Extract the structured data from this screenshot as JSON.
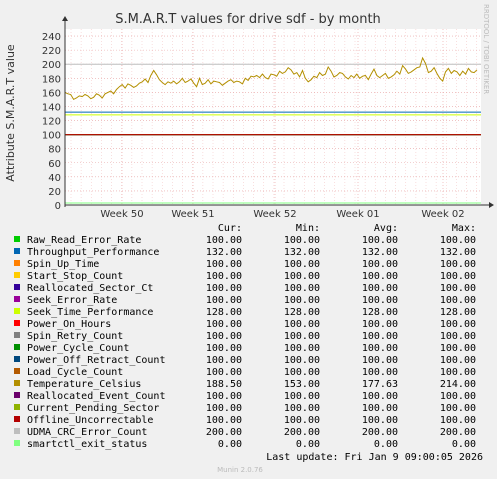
{
  "chart_data": {
    "type": "line",
    "title": "S.M.A.R.T values for drive sdf - by month",
    "ylabel": "Attribute S.M.A.R.T value",
    "side_label": "RRDTOOL / TOBI OETIKER",
    "ylim": [
      0,
      250
    ],
    "yticks": [
      0,
      20,
      40,
      60,
      80,
      100,
      120,
      140,
      160,
      180,
      200,
      220,
      240
    ],
    "xticks": [
      "Week 50",
      "Week 51",
      "Week 52",
      "Week 01",
      "Week 02"
    ],
    "grid": true,
    "legend_headers": [
      "Cur:",
      "Min:",
      "Avg:",
      "Max:"
    ],
    "series": [
      {
        "name": "Raw_Read_Error_Rate",
        "color": "#00cc00",
        "cur": "100.00",
        "min": "100.00",
        "avg": "100.00",
        "max": "100.00",
        "value": 100
      },
      {
        "name": "Throughput_Performance",
        "color": "#0066b3",
        "cur": "132.00",
        "min": "132.00",
        "avg": "132.00",
        "max": "132.00",
        "value": 132
      },
      {
        "name": "Spin_Up_Time",
        "color": "#ff8000",
        "cur": "100.00",
        "min": "100.00",
        "avg": "100.00",
        "max": "100.00",
        "value": 100
      },
      {
        "name": "Start_Stop_Count",
        "color": "#ffcc00",
        "cur": "100.00",
        "min": "100.00",
        "avg": "100.00",
        "max": "100.00",
        "value": 100
      },
      {
        "name": "Reallocated_Sector_Ct",
        "color": "#330099",
        "cur": "100.00",
        "min": "100.00",
        "avg": "100.00",
        "max": "100.00",
        "value": 100
      },
      {
        "name": "Seek_Error_Rate",
        "color": "#990099",
        "cur": "100.00",
        "min": "100.00",
        "avg": "100.00",
        "max": "100.00",
        "value": 100
      },
      {
        "name": "Seek_Time_Performance",
        "color": "#ccff00",
        "cur": "128.00",
        "min": "128.00",
        "avg": "128.00",
        "max": "128.00",
        "value": 128
      },
      {
        "name": "Power_On_Hours",
        "color": "#ff0000",
        "cur": "100.00",
        "min": "100.00",
        "avg": "100.00",
        "max": "100.00",
        "value": 100
      },
      {
        "name": "Spin_Retry_Count",
        "color": "#808080",
        "cur": "100.00",
        "min": "100.00",
        "avg": "100.00",
        "max": "100.00",
        "value": 100
      },
      {
        "name": "Power_Cycle_Count",
        "color": "#008f00",
        "cur": "100.00",
        "min": "100.00",
        "avg": "100.00",
        "max": "100.00",
        "value": 100
      },
      {
        "name": "Power_Off_Retract_Count",
        "color": "#00487d",
        "cur": "100.00",
        "min": "100.00",
        "avg": "100.00",
        "max": "100.00",
        "value": 100
      },
      {
        "name": "Load_Cycle_Count",
        "color": "#b35a00",
        "cur": "100.00",
        "min": "100.00",
        "avg": "100.00",
        "max": "100.00",
        "value": 100
      },
      {
        "name": "Temperature_Celsius",
        "color": "#b38f00",
        "cur": "188.50",
        "min": "153.00",
        "avg": "177.63",
        "max": "214.00",
        "value": 177.63
      },
      {
        "name": "Reallocated_Event_Count",
        "color": "#6b006b",
        "cur": "100.00",
        "min": "100.00",
        "avg": "100.00",
        "max": "100.00",
        "value": 100
      },
      {
        "name": "Current_Pending_Sector",
        "color": "#8fb300",
        "cur": "100.00",
        "min": "100.00",
        "avg": "100.00",
        "max": "100.00",
        "value": 100
      },
      {
        "name": "Offline_Uncorrectable",
        "color": "#b30000",
        "cur": "100.00",
        "min": "100.00",
        "avg": "100.00",
        "max": "100.00",
        "value": 100
      },
      {
        "name": "UDMA_CRC_Error_Count",
        "color": "#bebebe",
        "cur": "200.00",
        "min": "200.00",
        "avg": "200.00",
        "max": "200.00",
        "value": 200
      },
      {
        "name": "smartctl_exit_status",
        "color": "#80ff80",
        "cur": "0.00",
        "min": "0.00",
        "avg": "0.00",
        "max": "0.00",
        "value": 0
      }
    ],
    "temperature_trace": [
      160,
      158,
      157,
      150,
      152,
      155,
      154,
      157,
      155,
      151,
      153,
      158,
      156,
      152,
      158,
      160,
      162,
      158,
      164,
      168,
      171,
      166,
      172,
      170,
      167,
      169,
      173,
      175,
      179,
      174,
      184,
      191,
      185,
      178,
      174,
      171,
      175,
      173,
      176,
      172,
      175,
      180,
      174,
      176,
      179,
      173,
      168,
      180,
      171,
      173,
      178,
      172,
      176,
      175,
      174,
      170,
      173,
      176,
      178,
      174,
      176,
      175,
      172,
      180,
      177,
      183,
      182,
      184,
      181,
      186,
      181,
      179,
      186,
      185,
      183,
      190,
      187,
      189,
      195,
      192,
      186,
      188,
      182,
      191,
      180,
      175,
      178,
      183,
      181,
      188,
      184,
      186,
      196,
      190,
      182,
      184,
      188,
      187,
      182,
      179,
      184,
      181,
      186,
      180,
      183,
      184,
      178,
      186,
      193,
      184,
      181,
      184,
      187,
      180,
      182,
      185,
      190,
      186,
      198,
      193,
      187,
      189,
      192,
      195,
      196,
      209,
      201,
      188,
      190,
      195,
      187,
      180,
      176,
      189,
      194,
      187,
      191,
      189,
      184,
      190,
      186,
      194,
      189,
      188,
      192
    ],
    "last_update": "Last update:  Fri Jan  9 09:00:05 2026",
    "footer": "Munin 2.0.76"
  }
}
